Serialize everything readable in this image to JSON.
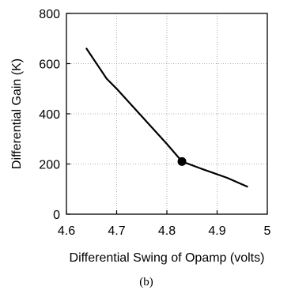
{
  "chart_data": {
    "type": "line",
    "xlabel": "Differential Swing of Opamp (volts)",
    "ylabel": "Differential Gain (K)",
    "xlim": [
      4.6,
      5.0
    ],
    "ylim": [
      0,
      800
    ],
    "x_ticks": [
      "4.6",
      "4.7",
      "4.8",
      "4.9",
      "5"
    ],
    "y_ticks": [
      "0",
      "200",
      "400",
      "600",
      "800"
    ],
    "grid": true,
    "series": [
      {
        "x": [
          4.64,
          4.68,
          4.7,
          4.75,
          4.8,
          4.83,
          4.87,
          4.92,
          4.96
        ],
        "y": [
          660,
          540,
          500,
          390,
          280,
          210,
          180,
          145,
          110
        ]
      }
    ],
    "highlight_point": {
      "x": 4.83,
      "y": 210
    },
    "caption": "(b)"
  }
}
